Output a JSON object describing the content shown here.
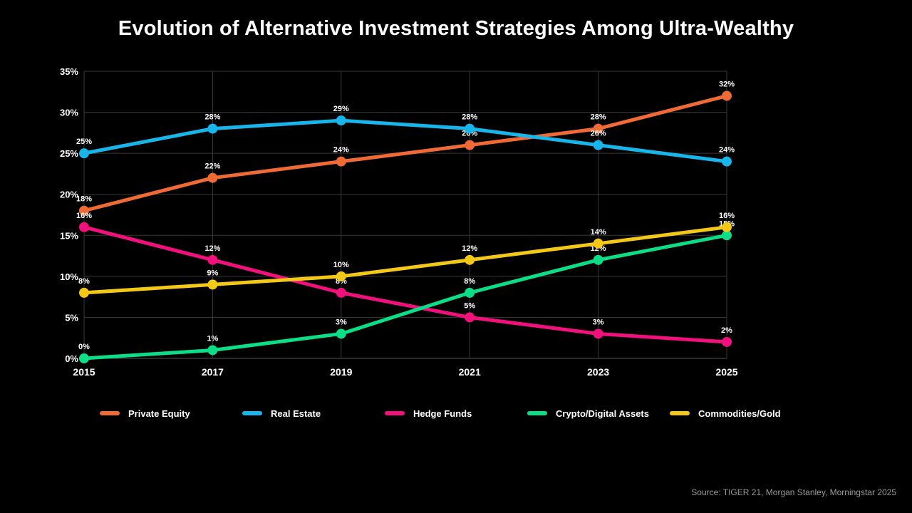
{
  "title": "Evolution of Alternative Investment Strategies Among Ultra-Wealthy",
  "source": "Source: TIGER 21, Morgan Stanley, Morningstar 2025",
  "colors": {
    "background": "#000000",
    "grid": "#383838",
    "axis": "#555555",
    "text": "#ffffff",
    "source_text": "#999999"
  },
  "chart_data": {
    "type": "line",
    "title": "Evolution of Alternative Investment Strategies Among Ultra-Wealthy",
    "categories": [
      "2015",
      "2017",
      "2019",
      "2021",
      "2023",
      "2025"
    ],
    "series": [
      {
        "name": "Private Equity",
        "color": "#F06A35",
        "values": [
          18,
          22,
          24,
          26,
          28,
          32
        ]
      },
      {
        "name": "Real Estate",
        "color": "#18B5EA",
        "values": [
          25,
          28,
          29,
          28,
          26,
          24
        ]
      },
      {
        "name": "Hedge Funds",
        "color": "#F2107C",
        "values": [
          16,
          12,
          8,
          5,
          3,
          2
        ]
      },
      {
        "name": "Crypto/Digital Assets",
        "color": "#0BDE87",
        "values": [
          0,
          1,
          3,
          8,
          12,
          15
        ]
      },
      {
        "name": "Commodities/Gold",
        "color": "#F4C816",
        "values": [
          8,
          9,
          10,
          12,
          14,
          16
        ]
      }
    ],
    "ylim": [
      0,
      35
    ],
    "ytick_step": 5,
    "tick_suffix": "%",
    "grid": true,
    "data_labels": true,
    "legend_position": "bottom",
    "xlabel": "",
    "ylabel": ""
  }
}
